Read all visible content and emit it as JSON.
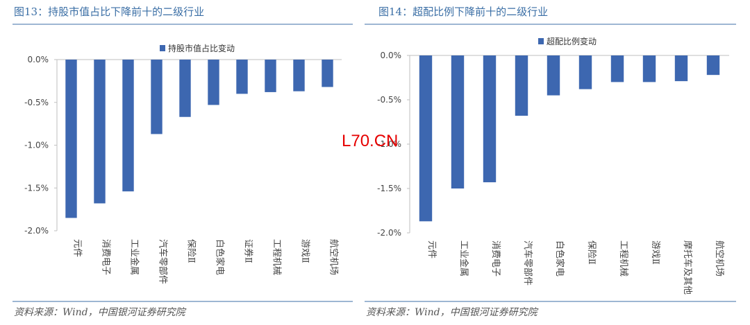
{
  "charts": [
    {
      "fig_title": "图13：持股市值占比下降前十的二级行业",
      "source": "资料来源：Wind，中国银河证券研究院"
    },
    {
      "fig_title": "图14：超配比例下降前十的二级行业",
      "source": "资料来源：Wind，中国银河证券研究院"
    }
  ],
  "watermark": "L70.CN",
  "colors": {
    "bar": "#3d67b0",
    "accent": "#3a6ea5",
    "rule": "#9db6d3"
  },
  "chart_data": [
    {
      "type": "bar",
      "categories": [
        "元件",
        "消费电子",
        "工业金属",
        "汽车零部件",
        "保险Ⅱ",
        "白色家电",
        "证券Ⅱ",
        "工程机械",
        "游戏Ⅱ",
        "航空机场"
      ],
      "series": [
        {
          "name": "持股市值占比变动",
          "values": [
            -1.85,
            -1.68,
            -1.54,
            -0.87,
            -0.67,
            -0.53,
            -0.4,
            -0.38,
            -0.37,
            -0.32
          ]
        }
      ],
      "yticks": [
        "0.0%",
        "-0.5%",
        "-1.0%",
        "-1.5%",
        "-2.0%"
      ],
      "ylim": [
        -2.0,
        0.0
      ],
      "legend": "top-center",
      "grid": false
    },
    {
      "type": "bar",
      "categories": [
        "元件",
        "工业金属",
        "消费电子",
        "汽车零部件",
        "白色家电",
        "保险Ⅱ",
        "工程机械",
        "游戏Ⅱ",
        "摩托车及其他",
        "航空机场"
      ],
      "series": [
        {
          "name": "超配比例变动",
          "values": [
            -1.87,
            -1.5,
            -1.43,
            -0.68,
            -0.45,
            -0.38,
            -0.3,
            -0.3,
            -0.29,
            -0.22
          ]
        }
      ],
      "yticks": [
        "0.0%",
        "-0.5%",
        "-1.0%",
        "-1.5%",
        "-2.0%"
      ],
      "ylim": [
        -2.0,
        0.0
      ],
      "legend": "top-center",
      "grid": false
    }
  ]
}
